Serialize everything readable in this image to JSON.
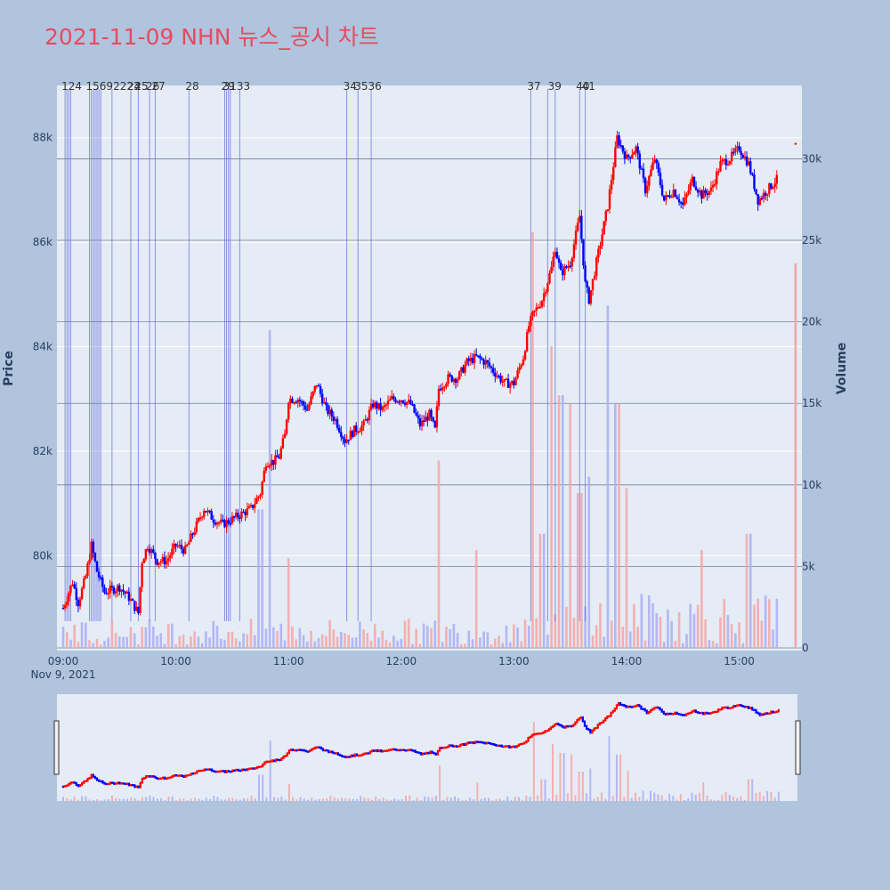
{
  "title": "2021-11-09 NHN 뉴스_공시 차트",
  "chart_data": {
    "type": "candlestick",
    "date_label": "Nov 9, 2021",
    "x_range": [
      "09:00",
      "15:30"
    ],
    "x_ticks": [
      "09:00",
      "10:00",
      "11:00",
      "12:00",
      "13:00",
      "14:00",
      "15:00"
    ],
    "ylabel": "Price",
    "y2label": "Volume",
    "price_range": [
      78200,
      89000
    ],
    "price_ticks": [
      80000,
      82000,
      84000,
      86000,
      88000
    ],
    "price_tick_labels": [
      "80k",
      "82k",
      "84k",
      "86k",
      "88k"
    ],
    "volume_range": [
      0,
      34500
    ],
    "volume_ticks": [
      0,
      5000,
      10000,
      15000,
      20000,
      25000,
      30000
    ],
    "volume_tick_labels": [
      "0",
      "5k",
      "10k",
      "15k",
      "20k",
      "25k",
      "30k"
    ],
    "up_color": "#ff0000",
    "down_color": "#0000ff",
    "price_keypoints": [
      [
        "09:00",
        79000
      ],
      [
        "09:05",
        79500
      ],
      [
        "09:08",
        79100
      ],
      [
        "09:12",
        79600
      ],
      [
        "09:15",
        80200
      ],
      [
        "09:18",
        79700
      ],
      [
        "09:22",
        79300
      ],
      [
        "09:30",
        79400
      ],
      [
        "09:35",
        79200
      ],
      [
        "09:40",
        78900
      ],
      [
        "09:42",
        79900
      ],
      [
        "09:45",
        80200
      ],
      [
        "09:50",
        79900
      ],
      [
        "09:55",
        79900
      ],
      [
        "10:00",
        80200
      ],
      [
        "10:05",
        80100
      ],
      [
        "10:10",
        80500
      ],
      [
        "10:15",
        80900
      ],
      [
        "10:20",
        80700
      ],
      [
        "10:25",
        80600
      ],
      [
        "10:30",
        80700
      ],
      [
        "10:35",
        80800
      ],
      [
        "10:40",
        80900
      ],
      [
        "10:45",
        81200
      ],
      [
        "10:48",
        81800
      ],
      [
        "10:52",
        81800
      ],
      [
        "10:55",
        81900
      ],
      [
        "10:58",
        82300
      ],
      [
        "11:00",
        83000
      ],
      [
        "11:05",
        83000
      ],
      [
        "11:10",
        82800
      ],
      [
        "11:15",
        83300
      ],
      [
        "11:20",
        82800
      ],
      [
        "11:25",
        82600
      ],
      [
        "11:30",
        82200
      ],
      [
        "11:35",
        82400
      ],
      [
        "11:40",
        82500
      ],
      [
        "11:45",
        82900
      ],
      [
        "11:50",
        82800
      ],
      [
        "11:55",
        83000
      ],
      [
        "12:00",
        83000
      ],
      [
        "12:05",
        82900
      ],
      [
        "12:10",
        82500
      ],
      [
        "12:15",
        82700
      ],
      [
        "12:18",
        82400
      ],
      [
        "12:20",
        83200
      ],
      [
        "12:25",
        83400
      ],
      [
        "12:30",
        83400
      ],
      [
        "12:35",
        83700
      ],
      [
        "12:40",
        83800
      ],
      [
        "12:45",
        83700
      ],
      [
        "12:50",
        83500
      ],
      [
        "12:55",
        83300
      ],
      [
        "13:00",
        83300
      ],
      [
        "13:05",
        83800
      ],
      [
        "13:08",
        84400
      ],
      [
        "13:10",
        84600
      ],
      [
        "13:15",
        84900
      ],
      [
        "13:20",
        85500
      ],
      [
        "13:22",
        85900
      ],
      [
        "13:25",
        85400
      ],
      [
        "13:30",
        85600
      ],
      [
        "13:35",
        86500
      ],
      [
        "13:38",
        85200
      ],
      [
        "13:40",
        84900
      ],
      [
        "13:45",
        85800
      ],
      [
        "13:50",
        86700
      ],
      [
        "13:55",
        88000
      ],
      [
        "14:00",
        87600
      ],
      [
        "14:05",
        87800
      ],
      [
        "14:10",
        87000
      ],
      [
        "14:15",
        87600
      ],
      [
        "14:20",
        86800
      ],
      [
        "14:25",
        87000
      ],
      [
        "14:30",
        86700
      ],
      [
        "14:35",
        87200
      ],
      [
        "14:40",
        86900
      ],
      [
        "14:45",
        87000
      ],
      [
        "14:50",
        87500
      ],
      [
        "14:55",
        87600
      ],
      [
        "15:00",
        87800
      ],
      [
        "15:05",
        87500
      ],
      [
        "15:10",
        86800
      ],
      [
        "15:15",
        87000
      ],
      [
        "15:20",
        87200
      ]
    ],
    "last_price": {
      "time": "15:30",
      "value": 87900
    },
    "last_volume": {
      "time": "15:30",
      "value": 23600
    },
    "news_markers": [
      {
        "label": "1",
        "time": "09:01"
      },
      {
        "label": "2",
        "time": "09:02"
      },
      {
        "label": "3",
        "time": "09:03"
      },
      {
        "label": "4",
        "time": "09:04"
      },
      {
        "label": "15",
        "time": "09:14"
      },
      {
        "label": "16",
        "time": "09:15"
      },
      {
        "label": "17",
        "time": "09:16"
      },
      {
        "label": "18",
        "time": "09:17"
      },
      {
        "label": "19",
        "time": "09:18"
      },
      {
        "label": "20",
        "time": "09:19"
      },
      {
        "label": "22",
        "time": "09:20"
      },
      {
        "label": "23",
        "time": "09:26"
      },
      {
        "label": "24",
        "time": "09:36"
      },
      {
        "label": "25",
        "time": "09:40"
      },
      {
        "label": "26",
        "time": "09:46"
      },
      {
        "label": "27",
        "time": "09:49"
      },
      {
        "label": "28",
        "time": "10:07"
      },
      {
        "label": "29",
        "time": "10:26"
      },
      {
        "label": "30",
        "time": "10:27"
      },
      {
        "label": "31",
        "time": "10:28"
      },
      {
        "label": "32",
        "time": "10:29"
      },
      {
        "label": "33",
        "time": "10:34"
      },
      {
        "label": "34",
        "time": "11:31"
      },
      {
        "label": "35",
        "time": "11:37"
      },
      {
        "label": "36",
        "time": "11:44"
      },
      {
        "label": "37",
        "time": "13:09"
      },
      {
        "label": "38",
        "time": "13:18"
      },
      {
        "label": "39",
        "time": "13:22"
      },
      {
        "label": "40",
        "time": "13:35"
      },
      {
        "label": "41",
        "time": "13:38"
      }
    ],
    "news_marker_label_overlaps": [
      {
        "text": "124",
        "time": "09:01"
      },
      {
        "text": "15692223",
        "time": "09:14"
      },
      {
        "text": "24",
        "time": "09:36"
      },
      {
        "text": "25",
        "time": "09:40"
      },
      {
        "text": "26",
        "time": "09:46"
      },
      {
        "text": "27",
        "time": "09:49"
      },
      {
        "text": "28",
        "time": "10:07"
      },
      {
        "text": "29",
        "time": "10:26"
      },
      {
        "text": "3133",
        "time": "10:27"
      },
      {
        "text": "34",
        "time": "11:31"
      },
      {
        "text": "3536",
        "time": "11:37"
      },
      {
        "text": "37",
        "time": "13:09"
      },
      {
        "text": "39",
        "time": "13:20"
      },
      {
        "text": "40",
        "time": "13:35"
      },
      {
        "text": "41",
        "time": "13:38"
      }
    ],
    "volume_spikes": [
      [
        "10:45",
        8500
      ],
      [
        "10:50",
        19500
      ],
      [
        "11:00",
        5500
      ],
      [
        "12:20",
        11500
      ],
      [
        "12:40",
        6000
      ],
      [
        "13:10",
        25500
      ],
      [
        "13:15",
        7000
      ],
      [
        "13:20",
        18500
      ],
      [
        "13:25",
        15500
      ],
      [
        "13:30",
        15000
      ],
      [
        "13:35",
        9500
      ],
      [
        "13:40",
        10500
      ],
      [
        "13:50",
        21000
      ],
      [
        "13:55",
        15000
      ],
      [
        "14:00",
        9800
      ],
      [
        "14:40",
        6000
      ],
      [
        "15:05",
        7000
      ],
      [
        "15:30",
        23600
      ]
    ]
  }
}
